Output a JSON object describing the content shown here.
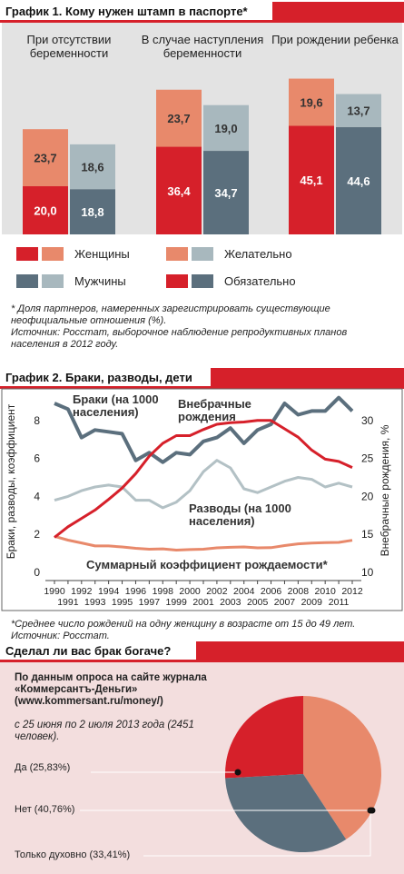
{
  "chart_data": [
    {
      "type": "bar",
      "title": "График 1. Кому нужен штамп в паспорте*",
      "categories": [
        "При отсутствии беременности",
        "В случае наступления беременности",
        "При рождении ребенка"
      ],
      "series": [
        {
          "color": "#d6202a",
          "values": [
            20.0,
            36.4,
            45.1
          ],
          "value_labels": [
            "20,0",
            "36,4",
            "45,1"
          ]
        },
        {
          "color": "#e8896b",
          "values": [
            23.7,
            23.7,
            19.6
          ],
          "value_labels": [
            "23,7",
            "23,7",
            "19,6"
          ]
        },
        {
          "color": "#5b6f7d",
          "values": [
            18.8,
            34.7,
            44.6
          ],
          "value_labels": [
            "18,8",
            "34,7",
            "44,6"
          ]
        },
        {
          "color": "#a8b8be",
          "values": [
            18.6,
            19.0,
            13.7
          ],
          "value_labels": [
            "18,6",
            "19,0",
            "13,7"
          ]
        }
      ],
      "legend": [
        {
          "label": "Женщины",
          "colors": [
            "#d6202a",
            "#e8896b"
          ]
        },
        {
          "label": "Желательно",
          "colors": [
            "#e8896b",
            "#a8b8be"
          ]
        },
        {
          "label": "Мужчины",
          "colors": [
            "#5b6f7d",
            "#a8b8be"
          ]
        },
        {
          "label": "Обязательно",
          "colors": [
            "#d6202a",
            "#5b6f7d"
          ]
        }
      ],
      "notes": [
        "* Доля партнеров, намеренных зарегистрировать существующие",
        "неофициальные отношения (%).",
        "Источник: Росстат, выборочное наблюдение репродуктивных планов",
        "населения в 2012 году."
      ]
    },
    {
      "type": "line",
      "title": "График 2. Браки, разводы, дети",
      "x": [
        1990,
        1991,
        1992,
        1993,
        1994,
        1995,
        1996,
        1997,
        1998,
        1999,
        2000,
        2001,
        2002,
        2003,
        2004,
        2005,
        2006,
        2007,
        2008,
        2009,
        2010,
        2011,
        2012
      ],
      "ylim": [
        0,
        10
      ],
      "yticks": [
        0,
        2,
        4,
        6,
        8
      ],
      "y2lim": [
        10,
        35
      ],
      "y2ticks": [
        10,
        15,
        20,
        25,
        30
      ],
      "ylabel": "Браки, разводы, коэффициент",
      "y2label": "Внебрачные рождения, %",
      "series": [
        {
          "name": "Браки (на 1000 населения)",
          "color": "#5b6f7d",
          "values": [
            8.9,
            8.6,
            7.1,
            7.5,
            7.4,
            7.3,
            5.9,
            6.3,
            5.8,
            6.3,
            6.2,
            6.9,
            7.1,
            7.6,
            6.8,
            7.5,
            7.8,
            8.9,
            8.3,
            8.5,
            8.5,
            9.2,
            8.5
          ]
        },
        {
          "name": "Разводы (на 1000 населения)",
          "color": "#b3c1c5",
          "values": [
            3.8,
            4.0,
            4.3,
            4.5,
            4.6,
            4.5,
            3.8,
            3.8,
            3.4,
            3.7,
            4.3,
            5.3,
            5.9,
            5.5,
            4.4,
            4.2,
            4.5,
            4.8,
            5.0,
            4.9,
            4.5,
            4.7,
            4.5
          ]
        },
        {
          "name": "Суммарный коэффициент рождаемости*",
          "color": "#e8896b",
          "values": [
            1.9,
            1.7,
            1.55,
            1.39,
            1.39,
            1.34,
            1.27,
            1.22,
            1.24,
            1.17,
            1.2,
            1.22,
            1.29,
            1.32,
            1.34,
            1.29,
            1.3,
            1.41,
            1.5,
            1.54,
            1.57,
            1.58,
            1.69
          ]
        },
        {
          "name": "Внебрачные рождения",
          "color": "#d6202a",
          "axis": "y2",
          "values": [
            14.6,
            16.0,
            17.1,
            18.2,
            19.6,
            21.1,
            23.0,
            25.3,
            27.0,
            28.0,
            28.0,
            28.8,
            29.5,
            29.7,
            29.8,
            30.0,
            30.0,
            28.9,
            27.8,
            26.1,
            24.9,
            24.6,
            23.8
          ]
        }
      ],
      "notes": [
        "*Среднее число рождений на одну женщину в возрасте от 15 до 49 лет.",
        "Источник: Росстат."
      ]
    },
    {
      "type": "pie",
      "title": "Сделал ли вас брак богаче?",
      "subtitle": "По данным опроса на сайте журнала «Коммерсантъ-Деньги» (www.kommersant.ru/money/)",
      "source_note": "с 25 июня по 2 июля 2013 года (2451 человек).",
      "categories": [
        "Да",
        "Нет",
        "Только духовно"
      ],
      "values": [
        25.83,
        40.76,
        33.41
      ],
      "value_labels": [
        "(25,83%)",
        "(40,76%)",
        "(33,41%)"
      ],
      "colors": [
        "#d6202a",
        "#e8896b",
        "#5b6f7d"
      ]
    }
  ]
}
